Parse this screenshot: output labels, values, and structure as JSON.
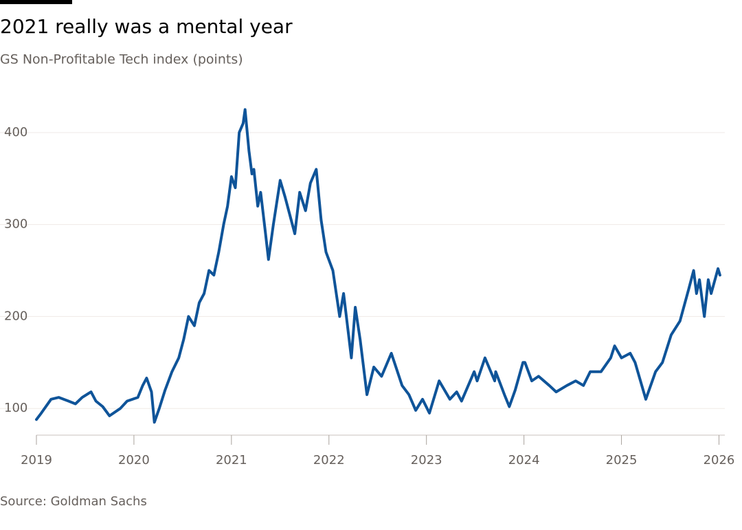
{
  "chart_data": {
    "type": "line",
    "title": "2021 really was a mental year",
    "subtitle": "GS Non-Profitable Tech index (points)",
    "source": "Source: Goldman Sachs",
    "x": [
      2019.0,
      2019.05,
      2019.15,
      2019.23,
      2019.33,
      2019.4,
      2019.47,
      2019.56,
      2019.61,
      2019.68,
      2019.75,
      2019.86,
      2019.93,
      2020.04,
      2020.09,
      2020.13,
      2020.18,
      2020.21,
      2020.26,
      2020.32,
      2020.39,
      2020.46,
      2020.51,
      2020.56,
      2020.62,
      2020.67,
      2020.72,
      2020.77,
      2020.82,
      2020.87,
      2020.92,
      2020.96,
      2021.0,
      2021.04,
      2021.08,
      2021.12,
      2021.14,
      2021.18,
      2021.21,
      2021.23,
      2021.27,
      2021.3,
      2021.35,
      2021.38,
      2021.43,
      2021.5,
      2021.55,
      2021.6,
      2021.65,
      2021.7,
      2021.76,
      2021.81,
      2021.87,
      2021.92,
      2021.97,
      2022.04,
      2022.11,
      2022.15,
      2022.23,
      2022.27,
      2022.32,
      2022.39,
      2022.46,
      2022.54,
      2022.64,
      2022.75,
      2022.82,
      2022.89,
      2022.96,
      2023.03,
      2023.13,
      2023.24,
      2023.31,
      2023.36,
      2023.49,
      2023.52,
      2023.6,
      2023.7,
      2023.71,
      2023.8,
      2023.85,
      2023.91,
      2023.99,
      2024.01,
      2024.08,
      2024.15,
      2024.26,
      2024.33,
      2024.44,
      2024.53,
      2024.61,
      2024.68,
      2024.79,
      2024.89,
      2024.93,
      2025.0,
      2025.09,
      2025.14,
      2025.25,
      2025.35,
      2025.42,
      2025.51,
      2025.6,
      2025.69,
      2025.74,
      2025.77,
      2025.8,
      2025.85,
      2025.89,
      2025.92,
      2025.99,
      2026.01
    ],
    "series": [
      {
        "color": "#0f5499",
        "values": [
          88,
          95,
          110,
          112,
          108,
          105,
          112,
          118,
          108,
          102,
          92,
          100,
          108,
          112,
          125,
          133,
          118,
          85,
          100,
          120,
          140,
          155,
          175,
          200,
          190,
          215,
          225,
          250,
          245,
          270,
          300,
          320,
          352,
          340,
          400,
          410,
          425,
          380,
          355,
          360,
          320,
          335,
          290,
          262,
          300,
          348,
          330,
          310,
          290,
          335,
          315,
          345,
          360,
          305,
          270,
          250,
          200,
          225,
          155,
          210,
          175,
          115,
          145,
          135,
          160,
          125,
          115,
          98,
          110,
          95,
          130,
          110,
          118,
          108,
          140,
          130,
          155,
          130,
          140,
          115,
          102,
          120,
          150,
          150,
          130,
          135,
          125,
          118,
          125,
          130,
          125,
          140,
          140,
          155,
          168,
          155,
          160,
          150,
          110,
          140,
          150,
          180,
          195,
          230,
          250,
          225,
          240,
          200,
          240,
          225,
          252,
          245
        ]
      }
    ],
    "xlim": [
      2019,
      2026.06
    ],
    "xticks": [
      2019,
      2020,
      2021,
      2022,
      2023,
      2024,
      2025,
      2026
    ],
    "ylim": [
      71,
      432
    ],
    "yticks": [
      100,
      200,
      300,
      400
    ],
    "grid": true
  }
}
